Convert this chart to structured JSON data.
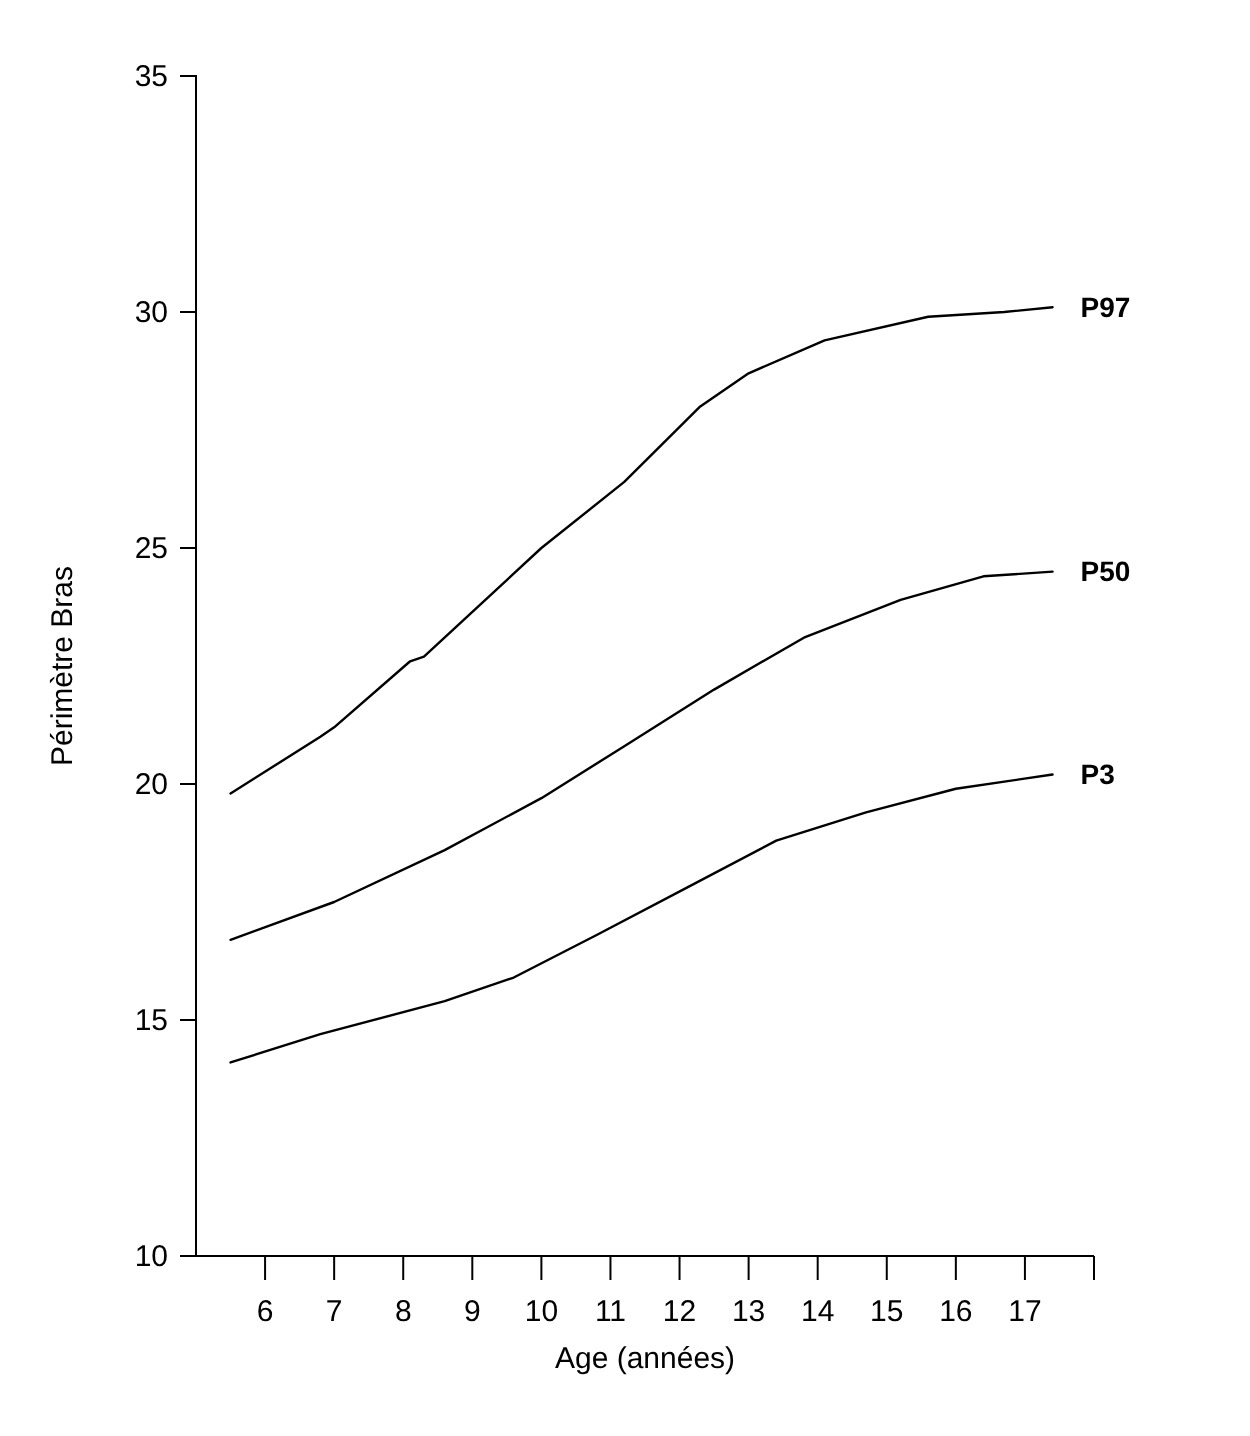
{
  "chart_data": {
    "type": "line",
    "xlabel": "Age (années)",
    "ylabel": "Périmètre Bras",
    "xlim": [
      5,
      18
    ],
    "xticks": [
      6,
      7,
      8,
      9,
      10,
      11,
      12,
      13,
      14,
      15,
      16,
      17,
      {
        "value": 18,
        "label": null
      }
    ],
    "ylim": [
      10,
      35
    ],
    "yticks": [
      10,
      15,
      20,
      25,
      30,
      35
    ],
    "grid": false,
    "legend": false,
    "marker": "none",
    "line_style": "solid",
    "series": [
      {
        "name": "P97",
        "color": "#000000",
        "x": [
          5.5,
          6.8,
          7.0,
          8.1,
          8.3,
          10.0,
          11.2,
          12.3,
          13.0,
          14.1,
          15.6,
          16.7,
          17.4
        ],
        "values": [
          19.8,
          21.0,
          21.2,
          22.6,
          22.7,
          25.0,
          26.4,
          28.0,
          28.7,
          29.4,
          29.9,
          30.0,
          30.1
        ]
      },
      {
        "name": "P50",
        "color": "#000000",
        "x": [
          5.5,
          7.0,
          8.6,
          10.0,
          11.2,
          12.5,
          13.8,
          15.2,
          16.4,
          17.4
        ],
        "values": [
          16.7,
          17.5,
          18.6,
          19.7,
          20.8,
          22.0,
          23.1,
          23.9,
          24.4,
          24.5
        ]
      },
      {
        "name": "P3",
        "color": "#000000",
        "x": [
          5.5,
          6.8,
          8.6,
          9.6,
          10.8,
          12.1,
          13.4,
          14.7,
          16.0,
          17.4
        ],
        "values": [
          14.1,
          14.7,
          15.4,
          15.9,
          16.8,
          17.8,
          18.8,
          19.4,
          19.9,
          20.2
        ]
      }
    ]
  }
}
